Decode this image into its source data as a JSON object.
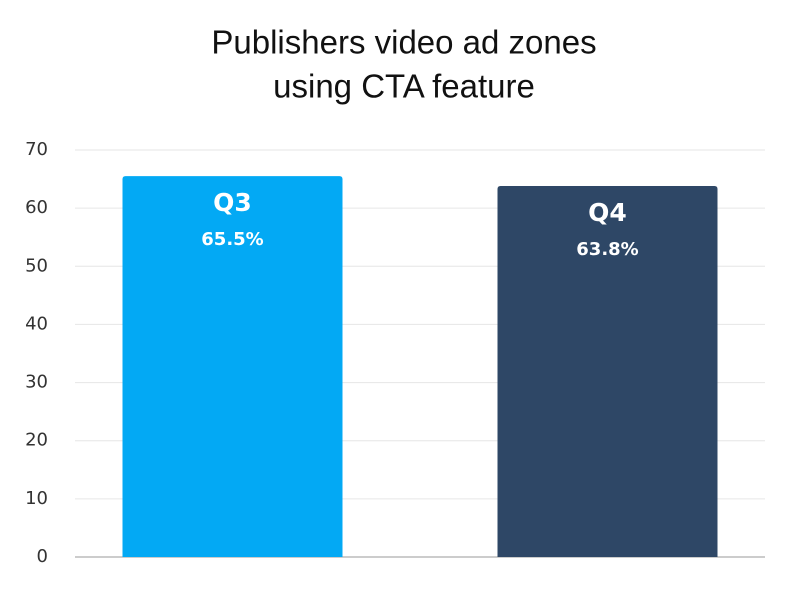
{
  "chart_data": {
    "type": "bar",
    "title": [
      "Publishers video ad zones",
      "using CTA feature"
    ],
    "categories": [
      "Q3",
      "Q4"
    ],
    "values": [
      65.5,
      63.8
    ],
    "value_labels": [
      "65.5%",
      "63.8%"
    ],
    "colors": [
      "#03a9f4",
      "#2e4766"
    ],
    "ylim": [
      0,
      70
    ],
    "yticks": [
      0,
      10,
      20,
      30,
      40,
      50,
      60,
      70
    ],
    "grid": true
  }
}
